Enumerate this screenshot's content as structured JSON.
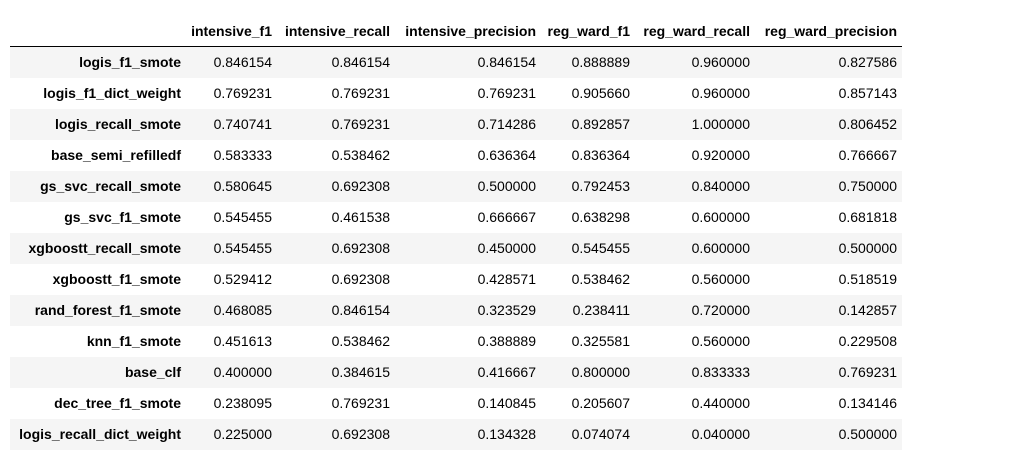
{
  "table": {
    "columns": [
      "intensive_f1",
      "intensive_recall",
      "intensive_precision",
      "reg_ward_f1",
      "reg_ward_recall",
      "reg_ward_precision"
    ],
    "rows": [
      {
        "index": "logis_f1_smote",
        "values": [
          "0.846154",
          "0.846154",
          "0.846154",
          "0.888889",
          "0.960000",
          "0.827586"
        ]
      },
      {
        "index": "logis_f1_dict_weight",
        "values": [
          "0.769231",
          "0.769231",
          "0.769231",
          "0.905660",
          "0.960000",
          "0.857143"
        ]
      },
      {
        "index": "logis_recall_smote",
        "values": [
          "0.740741",
          "0.769231",
          "0.714286",
          "0.892857",
          "1.000000",
          "0.806452"
        ]
      },
      {
        "index": "base_semi_refilledf",
        "values": [
          "0.583333",
          "0.538462",
          "0.636364",
          "0.836364",
          "0.920000",
          "0.766667"
        ]
      },
      {
        "index": "gs_svc_recall_smote",
        "values": [
          "0.580645",
          "0.692308",
          "0.500000",
          "0.792453",
          "0.840000",
          "0.750000"
        ]
      },
      {
        "index": "gs_svc_f1_smote",
        "values": [
          "0.545455",
          "0.461538",
          "0.666667",
          "0.638298",
          "0.600000",
          "0.681818"
        ]
      },
      {
        "index": "xgboostt_recall_smote",
        "values": [
          "0.545455",
          "0.692308",
          "0.450000",
          "0.545455",
          "0.600000",
          "0.500000"
        ]
      },
      {
        "index": "xgboostt_f1_smote",
        "values": [
          "0.529412",
          "0.692308",
          "0.428571",
          "0.538462",
          "0.560000",
          "0.518519"
        ]
      },
      {
        "index": "rand_forest_f1_smote",
        "values": [
          "0.468085",
          "0.846154",
          "0.323529",
          "0.238411",
          "0.720000",
          "0.142857"
        ]
      },
      {
        "index": "knn_f1_smote",
        "values": [
          "0.451613",
          "0.538462",
          "0.388889",
          "0.325581",
          "0.560000",
          "0.229508"
        ]
      },
      {
        "index": "base_clf",
        "values": [
          "0.400000",
          "0.384615",
          "0.416667",
          "0.800000",
          "0.833333",
          "0.769231"
        ]
      },
      {
        "index": "dec_tree_f1_smote",
        "values": [
          "0.238095",
          "0.769231",
          "0.140845",
          "0.205607",
          "0.440000",
          "0.134146"
        ]
      },
      {
        "index": "logis_recall_dict_weight",
        "values": [
          "0.225000",
          "0.692308",
          "0.134328",
          "0.074074",
          "0.040000",
          "0.500000"
        ]
      }
    ]
  }
}
